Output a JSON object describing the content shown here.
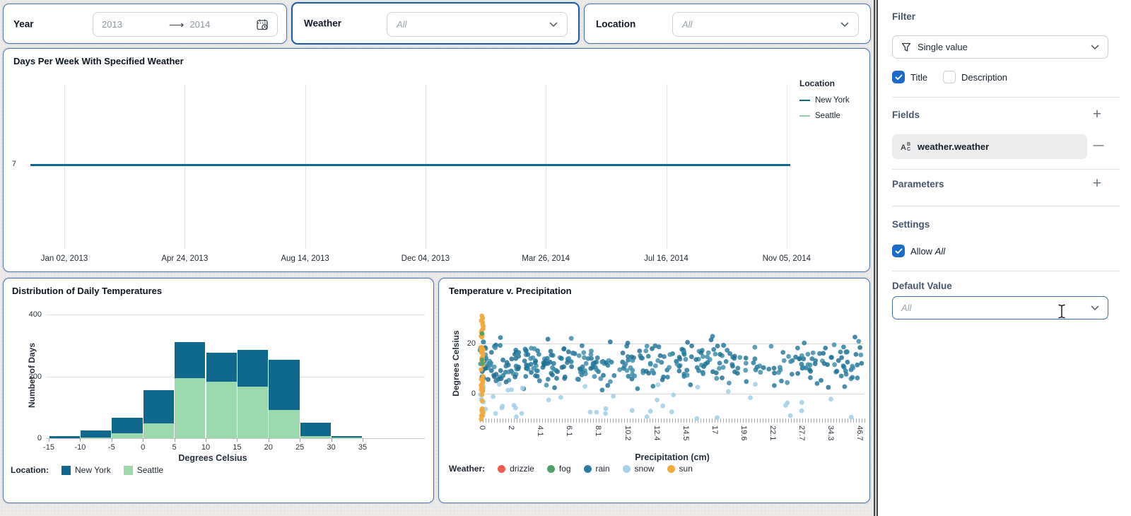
{
  "filters": {
    "year": {
      "label": "Year",
      "start": "2013",
      "end": "2014",
      "arrow": "⟶"
    },
    "weather": {
      "label": "Weather",
      "value": "All"
    },
    "location": {
      "label": "Location",
      "value": "All"
    }
  },
  "sidebar": {
    "filter_heading": "Filter",
    "filter_type_selector": "Single value",
    "title_checkbox": "Title",
    "description_checkbox": "Description",
    "fields_heading": "Fields",
    "field_name": "weather.weather",
    "parameters_heading": "Parameters",
    "settings_heading": "Settings",
    "allow_prefix": "Allow",
    "allow_value": "All",
    "default_value_heading": "Default Value",
    "default_value_text": "All"
  },
  "chart_data": [
    {
      "type": "line",
      "title": "Days Per Week With Specified Weather",
      "y_tick": "7",
      "x_tick_labels": [
        "Jan 02, 2013",
        "Apr 24, 2013",
        "Aug 14, 2013",
        "Dec 04, 2013",
        "Mar 26, 2014",
        "Jul 16, 2014",
        "Nov 05, 2014"
      ],
      "legend": {
        "title": "Location",
        "items": [
          {
            "label": "New York",
            "color": "#0e6a90"
          },
          {
            "label": "Seattle",
            "color": "#8fd6a2"
          }
        ]
      },
      "series": [
        {
          "name": "New York",
          "color": "#0e6a90",
          "constant_value": 7
        },
        {
          "name": "Seattle",
          "color": "#8fd6a2",
          "constant_value": 7
        }
      ]
    },
    {
      "type": "bar",
      "title": "Distribution of Daily Temperatures",
      "xlabel": "Degrees Celsius",
      "ylabel": "Number of Days",
      "x_ticks": [
        -15,
        -10,
        -5,
        0,
        5,
        10,
        15,
        20,
        25,
        30,
        35
      ],
      "y_ticks": [
        0,
        200,
        400
      ],
      "ylim": [
        0,
        400
      ],
      "bin_width": 5,
      "bin_starts": [
        -15,
        -10,
        -5,
        0,
        5,
        10,
        15,
        20,
        25,
        30
      ],
      "series": [
        {
          "name": "Seattle",
          "color": "#9bd8ab",
          "values": [
            0,
            2,
            15,
            49,
            195,
            183,
            167,
            92,
            8,
            2
          ]
        },
        {
          "name": "New York",
          "color": "#10688e",
          "values": [
            8,
            23,
            51,
            106,
            117,
            94,
            118,
            162,
            43,
            6
          ]
        }
      ],
      "legend": {
        "title": "Location:",
        "items": [
          {
            "label": "New York",
            "color": "#10688e"
          },
          {
            "label": "Seattle",
            "color": "#9bd8ab"
          }
        ]
      }
    },
    {
      "type": "scatter",
      "title": "Temperature v. Precipitation",
      "xlabel": "Precipitation (cm)",
      "ylabel": "Degrees Celsius",
      "x_tick_labels": [
        "0",
        "2",
        "4.1",
        "6.1",
        "8.1",
        "10.2",
        "12.4",
        "14.5",
        "17",
        "19.6",
        "22.1",
        "27.7",
        "34.3",
        "46.7"
      ],
      "y_ticks": [
        0,
        20
      ],
      "legend": {
        "title": "Weather:",
        "items": [
          {
            "label": "drizzle",
            "color": "#ee5c50"
          },
          {
            "label": "fog",
            "color": "#4fa16b"
          },
          {
            "label": "rain",
            "color": "#2a7da0"
          },
          {
            "label": "snow",
            "color": "#a5d2e9"
          },
          {
            "label": "sun",
            "color": "#f2a93e"
          }
        ]
      },
      "point_clusters": [
        {
          "category": "sun",
          "count": 60,
          "x": "0-column",
          "y_range": [
            -11.5,
            31.5
          ]
        },
        {
          "category": "fog",
          "count": 3,
          "x": "0-column",
          "y_values": [
            24,
            13.5,
            12
          ]
        },
        {
          "category": "rain",
          "count": 400,
          "x_skew": "dense-left",
          "y_center": 12,
          "y_range": [
            -3,
            28
          ]
        },
        {
          "category": "snow",
          "count": 48,
          "x_skew": "dense-left",
          "y_range": [
            -10,
            4
          ]
        }
      ]
    }
  ],
  "colors": {
    "panel_border": "#4a73ae",
    "weather_panel_border": "#1d5c9e",
    "checkbox_blue": "#1b6cc8",
    "newyork": "#10688e",
    "seattle": "#9bd8ab",
    "sun_stripe": "#f2a93e"
  }
}
